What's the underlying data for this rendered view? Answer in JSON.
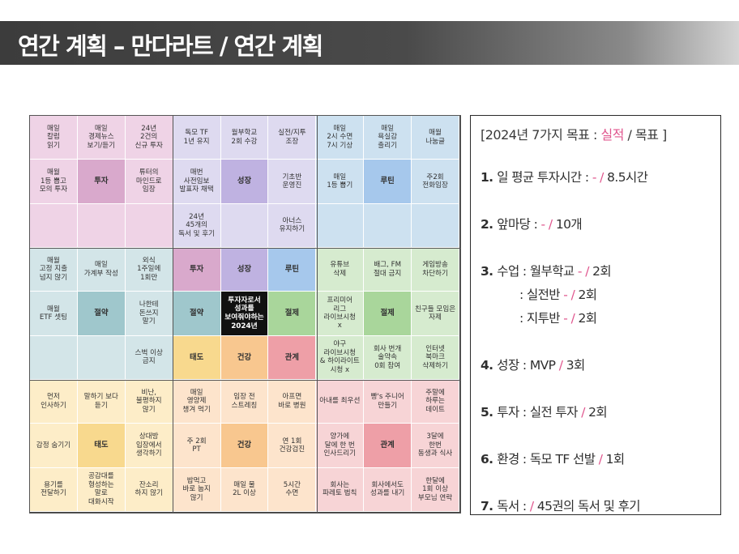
{
  "title": "연간 계획 – 만다라트 / 연간 계획",
  "colors": {
    "pink": "#efd3e6",
    "pink_core": "#d9a9cc",
    "lavender": "#dedaf0",
    "lavender_core": "#bfb2e1",
    "blue": "#cde1f0",
    "blue_core": "#a6c8ec",
    "teal": "#d3e5e8",
    "teal_core": "#9fc7cc",
    "green": "#d6ebcf",
    "green_core": "#a9d69b",
    "yellow": "#fdedc8",
    "yellow_core": "#f8d98e",
    "orange": "#fde4cc",
    "orange_core": "#f8c78f",
    "red": "#f7d4d6",
    "red_core": "#ee9fa7",
    "center": "#111111",
    "accent": "#e0568e"
  },
  "mandalart": [
    [
      "매일\n칼럼\n읽기",
      "매일\n경제뉴스\n보기/듣기",
      "24년\n2건의\n신규 투자",
      "독모 TF\n1년 유지",
      "월부학교\n2회 수강",
      "실전/지투\n조장",
      "매일\n2시 수면\n7시 기상",
      "매일\n욕실감\n출리기",
      "매월\n나눔글"
    ],
    [
      "매월\n1등 뽑고\n모의 투자",
      "투자",
      "튜터의\n마인드로\n임장",
      "매번\n사전임보\n발표자 채택",
      "성장",
      "기초반\n운영진",
      "매일\n1등 뽑기",
      "루틴",
      "주2회\n전화임장"
    ],
    [
      "",
      "",
      "",
      "24년\n45개의\n독서 및 후기",
      "",
      "아너스\n유지하기",
      "",
      "",
      ""
    ],
    [
      "매월\n고정 지출\n넘지 않기",
      "매일\n가계부 작성",
      "외식\n1주일에\n1회만",
      "투자",
      "성장",
      "루틴",
      "유튜브\n삭제",
      "배그, FM\n절대 금지",
      "게임방송\n차단하기"
    ],
    [
      "매월\nETF 셋팅",
      "절약",
      "나한테\n돈쓰지\n말기",
      "절약",
      "투자자로서\n성과를\n보여줘야하는\n2024년",
      "절제",
      "프리미어\n리그\n라이브시청\nx",
      "절제",
      "친구들 모임은\n자제"
    ],
    [
      "",
      "",
      "스벅 이상\n금지",
      "태도",
      "건강",
      "관계",
      "야구\n라이브시청\n& 하이라이트\n시청 x",
      "회사 번개\n술약속\n0회 참여",
      "인터넷\n북마크\n삭제하기"
    ],
    [
      "먼저\n인사하기",
      "말하기 보다\n듣기",
      "비난,\n불평하지\n않기",
      "매일\n영양제\n챙겨 먹기",
      "임장 전\n스트레칭",
      "아프면\n바로 병원",
      "아내를 최우선",
      "빵's 주니어\n만들기",
      "주말에\n하루는\n데이트"
    ],
    [
      "감정 숨기기",
      "태도",
      "상대방\n입장에서\n생각하기",
      "주 2회\nPT",
      "건강",
      "연 1회\n건강검진",
      "양가에\n달에 한 번\n인사드리기",
      "관계",
      "3달에\n한번\n동생과 식사"
    ],
    [
      "용기를\n전달하기",
      "공감대를\n형성하는\n말로\n대화시작",
      "잔소리\n하지 않기",
      "밥먹고\n바로 눕지\n않기",
      "매일 물\n2L 이상",
      "5시간\n수면",
      "회사는\n파레토 법칙",
      "회사에서도\n성과를 내기",
      "한달에\n1회 이상\n부모님 연락"
    ]
  ],
  "goals": {
    "header_open": "[2024년 7가지 목표 : ",
    "header_actual": "실적",
    "header_slash": " / ",
    "header_target": "목표",
    "header_close": " ]",
    "items": [
      {
        "num": "1.",
        "label": "일 평균 투자시간 : ",
        "actual": "- ",
        "slash": "/ ",
        "target": "8.5시간"
      },
      {
        "num": "2.",
        "label": "앞마당 : ",
        "actual": "- ",
        "slash": "/ ",
        "target": "10개"
      },
      {
        "num": "3.",
        "label": "수업 : 월부학교 ",
        "actual": "- ",
        "slash": "/ ",
        "target": "2회"
      },
      {
        "num": "",
        "label": ": 실전반 ",
        "actual": "- ",
        "slash": "/ ",
        "target": "2회"
      },
      {
        "num": "",
        "label": ": 지투반 ",
        "actual": "- ",
        "slash": "/ ",
        "target": "2회"
      },
      {
        "num": "4.",
        "label": "성장 : MVP ",
        "actual": "",
        "slash": "/ ",
        "target": "3회"
      },
      {
        "num": "5.",
        "label": "투자 : 실전 투자 ",
        "actual": "",
        "slash": "/ ",
        "target": "2회"
      },
      {
        "num": "6.",
        "label": "환경 : 독모 TF 선발 ",
        "actual": "",
        "slash": "/ ",
        "target": "1회"
      },
      {
        "num": "7.",
        "label": "독서 : ",
        "actual": "",
        "slash": "/ ",
        "target": "45권의 독서 및 후기"
      }
    ]
  }
}
